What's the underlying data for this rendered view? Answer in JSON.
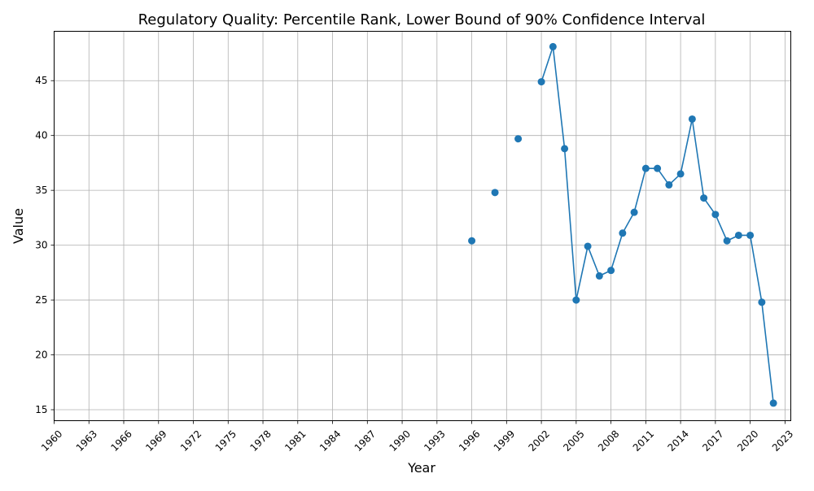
{
  "chart_data": {
    "type": "line",
    "title": "Regulatory Quality: Percentile Rank, Lower Bound of 90% Confidence Interval",
    "xlabel": "Year",
    "ylabel": "Value",
    "xlim": [
      1960,
      2023.5
    ],
    "ylim": [
      14,
      49.5
    ],
    "x_ticks": [
      "1960",
      "1963",
      "1966",
      "1969",
      "1972",
      "1975",
      "1978",
      "1981",
      "1984",
      "1987",
      "1990",
      "1993",
      "1996",
      "1999",
      "2002",
      "2005",
      "2008",
      "2011",
      "2014",
      "2017",
      "2020",
      "2023"
    ],
    "y_ticks": [
      15,
      20,
      25,
      30,
      35,
      40,
      45
    ],
    "grid": true,
    "series": [
      {
        "color": "#1f77b4",
        "points": [
          {
            "x": 1996,
            "y": 30.4
          },
          {
            "x": 1998,
            "y": 34.8
          },
          {
            "x": 2000,
            "y": 39.7
          },
          {
            "x": 2002,
            "y": 44.9
          },
          {
            "x": 2003,
            "y": 48.1
          },
          {
            "x": 2004,
            "y": 38.8
          },
          {
            "x": 2005,
            "y": 25.0
          },
          {
            "x": 2006,
            "y": 29.9
          },
          {
            "x": 2007,
            "y": 27.2
          },
          {
            "x": 2008,
            "y": 27.7
          },
          {
            "x": 2009,
            "y": 31.1
          },
          {
            "x": 2010,
            "y": 33.0
          },
          {
            "x": 2011,
            "y": 37.0
          },
          {
            "x": 2012,
            "y": 37.0
          },
          {
            "x": 2013,
            "y": 35.5
          },
          {
            "x": 2014,
            "y": 36.5
          },
          {
            "x": 2015,
            "y": 41.5
          },
          {
            "x": 2016,
            "y": 34.3
          },
          {
            "x": 2017,
            "y": 32.8
          },
          {
            "x": 2018,
            "y": 30.4
          },
          {
            "x": 2019,
            "y": 30.9
          },
          {
            "x": 2020,
            "y": 30.9
          },
          {
            "x": 2021,
            "y": 24.8
          },
          {
            "x": 2022,
            "y": 15.6
          }
        ]
      }
    ]
  }
}
